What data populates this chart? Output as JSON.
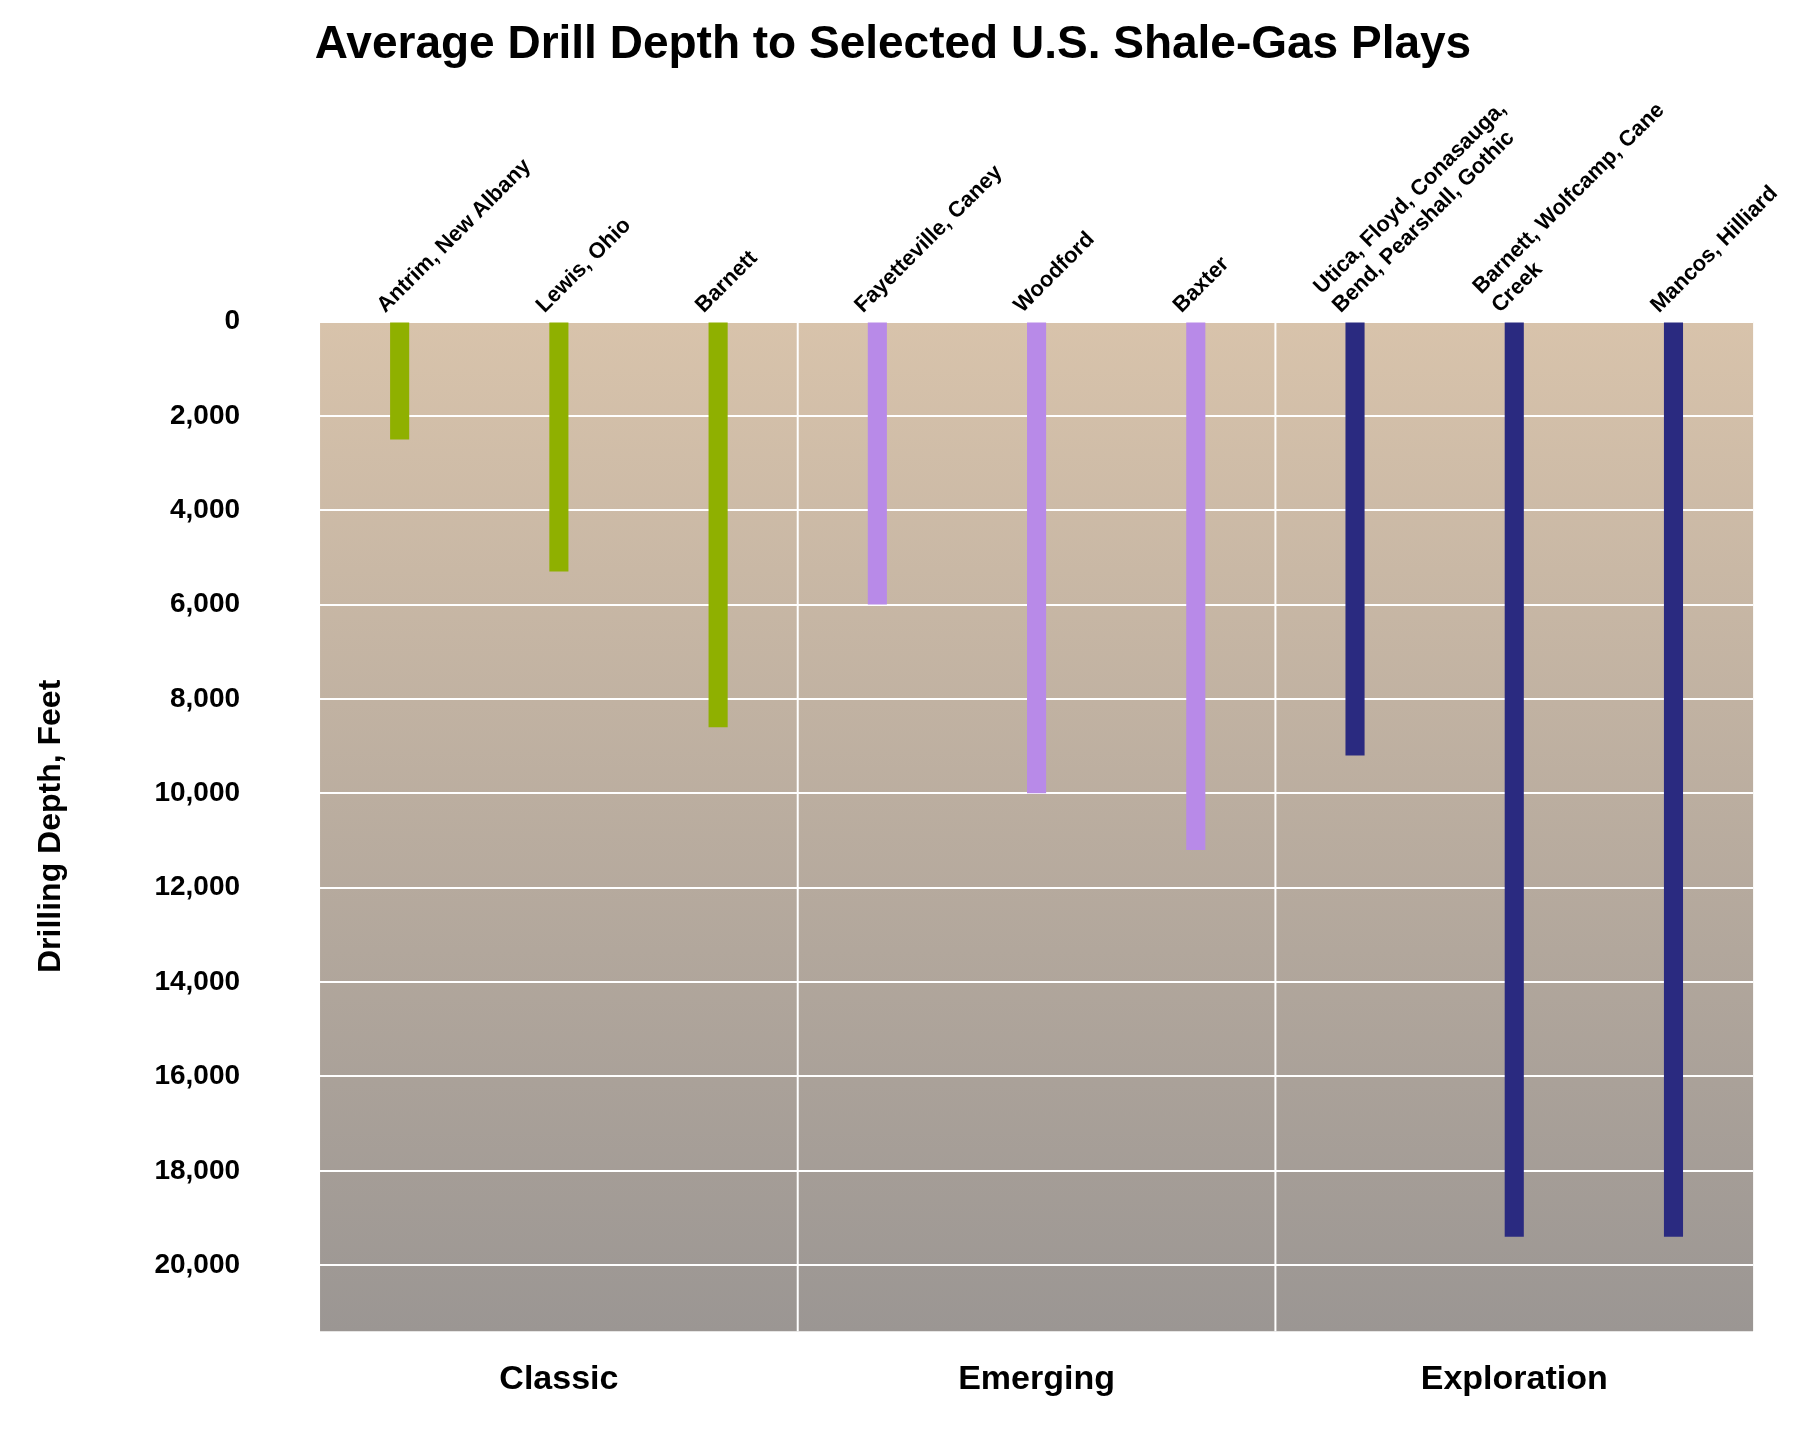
{
  "chart_data": {
    "type": "bar",
    "title": "Average Drill Depth to Selected U.S. Shale-Gas Plays",
    "ylabel": "Drilling Depth, Feet",
    "categories": [
      "Antrim, New Albany",
      "Lewis, Ohio",
      "Barnett",
      "Fayetteville, Caney",
      "Woodford",
      "Baxter",
      "Utica, Floyd, Conasauga, Bend, Pearshall, Gothic",
      "Barnett, Wolfcamp, Cane Creek",
      "Mancos, Hilliard"
    ],
    "values": [
      2500,
      5300,
      8600,
      6000,
      10000,
      11200,
      9200,
      19400,
      19400
    ],
    "colors": [
      "#8fb000",
      "#8fb000",
      "#8fb000",
      "#b88ae8",
      "#b88ae8",
      "#b88ae8",
      "#2a2a80",
      "#2a2a80",
      "#2a2a80"
    ],
    "ylim": [
      21400,
      0
    ],
    "yticks": [
      0,
      {
        "value": 2000,
        "label": "2,000"
      },
      {
        "value": 4000,
        "label": "4,000"
      },
      {
        "value": 6000,
        "label": "6,000"
      },
      {
        "value": 8000,
        "label": "8,000"
      },
      {
        "value": 10000,
        "label": "10,000"
      },
      {
        "value": 12000,
        "label": "12,000"
      },
      {
        "value": 14000,
        "label": "14,000"
      },
      {
        "value": 16000,
        "label": "16,000"
      },
      {
        "value": 18000,
        "label": "18,000"
      },
      {
        "value": 20000,
        "label": "20,000"
      }
    ],
    "grid": "y",
    "annotations": [
      "Classic",
      "Emerging",
      "Exploration"
    ]
  }
}
